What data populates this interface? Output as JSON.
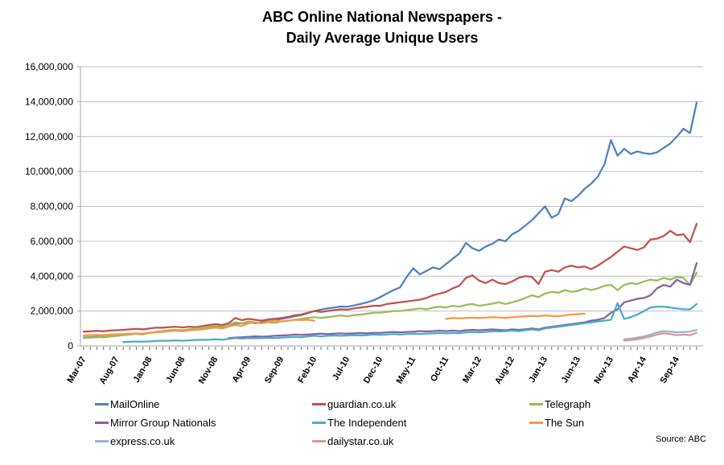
{
  "title": {
    "line1": "ABC Online National Newspapers -",
    "line2": "Daily Average Unique Users"
  },
  "source_note": "Source: ABC",
  "chart_data": {
    "type": "line",
    "title": "ABC Online National Newspapers - Daily Average Unique Users",
    "xlabel": "",
    "ylabel": "",
    "ylim": [
      0,
      16000000
    ],
    "y_tick_step": 2000000,
    "y_tick_labels": [
      "0",
      "2,000,000",
      "4,000,000",
      "6,000,000",
      "8,000,000",
      "10,000,000",
      "12,000,000",
      "14,000,000",
      "16,000,000"
    ],
    "x_label_every": 5,
    "x_tick_labels_shown": [
      "Mar-07",
      "Aug-07",
      "Jan-08",
      "Jun-08",
      "Nov-08",
      "Apr-09",
      "Sep-09",
      "Feb-10",
      "Jul-10",
      "Dec-10",
      "May-11",
      "Oct-11",
      "Mar-12",
      "Aug-12",
      "Jan-13",
      "Jun-13",
      "Nov-13",
      "Apr-14",
      "Sep-14"
    ],
    "grid": "horizontal",
    "legend_position": "bottom",
    "values_unit": "daily average unique users, stored in millions",
    "value_multiplier": 1000000,
    "style": {
      "grid_color": "#C0C0C0",
      "axis_color": "#A6A6A6",
      "tick_color": "#666666",
      "text_color": "#000000",
      "line_width": 2.25
    },
    "x": [
      "Mar-07",
      "Apr-07",
      "May-07",
      "Jun-07",
      "Jul-07",
      "Aug-07",
      "Sep-07",
      "Oct-07",
      "Nov-07",
      "Dec-07",
      "Jan-08",
      "Feb-08",
      "Mar-08",
      "Apr-08",
      "May-08",
      "Jun-08",
      "Jul-08",
      "Aug-08",
      "Sep-08",
      "Oct-08",
      "Nov-08",
      "Dec-08",
      "Jan-09",
      "Feb-09",
      "Mar-09",
      "Apr-09",
      "May-09",
      "Jun-09",
      "Jul-09",
      "Aug-09",
      "Sep-09",
      "Oct-09",
      "Nov-09",
      "Dec-09",
      "Jan-10",
      "Feb-10",
      "Mar-10",
      "Apr-10",
      "May-10",
      "Jun-10",
      "Jul-10",
      "Aug-10",
      "Sep-10",
      "Oct-10",
      "Nov-10",
      "Dec-10",
      "Jan-11",
      "Feb-11",
      "Mar-11",
      "Apr-11",
      "May-11",
      "Jun-11",
      "Jul-11",
      "Aug-11",
      "Sep-11",
      "Oct-11",
      "Nov-11",
      "Dec-11",
      "Jan-12",
      "Feb-12",
      "Mar-12",
      "Apr-12",
      "May-12",
      "Jun-12",
      "Jul-12",
      "Aug-12",
      "Sep-12",
      "Oct-12",
      "Nov-12",
      "Dec-12",
      "Jan-13",
      "Feb-13",
      "Mar-13",
      "Apr-13",
      "May-13",
      "Jun-13",
      "Jul-13",
      "Aug-13",
      "Sep-13",
      "Oct-13",
      "Nov-13",
      "Dec-13",
      "Jan-14",
      "Feb-14",
      "Mar-14",
      "Apr-14",
      "May-14",
      "Jun-14",
      "Jul-14",
      "Aug-14",
      "Sep-14",
      "Oct-14",
      "Nov-14",
      "Dec-14"
    ],
    "series": [
      {
        "name": "MailOnline",
        "color": "#4F81BD",
        "values": [
          0.48,
          0.5,
          0.52,
          0.5,
          0.55,
          0.58,
          0.62,
          0.66,
          0.7,
          0.67,
          0.75,
          0.8,
          0.83,
          0.86,
          0.88,
          0.85,
          0.9,
          0.95,
          1.0,
          1.05,
          1.1,
          1.05,
          1.15,
          1.28,
          1.3,
          1.36,
          1.3,
          1.35,
          1.42,
          1.46,
          1.55,
          1.62,
          1.7,
          1.76,
          1.88,
          2.0,
          2.08,
          2.15,
          2.2,
          2.26,
          2.25,
          2.32,
          2.4,
          2.5,
          2.62,
          2.8,
          3.0,
          3.2,
          3.35,
          3.95,
          4.45,
          4.1,
          4.3,
          4.5,
          4.4,
          4.7,
          5.0,
          5.3,
          5.9,
          5.6,
          5.45,
          5.7,
          5.85,
          6.1,
          6.0,
          6.4,
          6.6,
          6.9,
          7.2,
          7.6,
          8.0,
          7.35,
          7.55,
          8.45,
          8.3,
          8.6,
          9.0,
          9.3,
          9.7,
          10.4,
          11.8,
          10.9,
          11.3,
          11.0,
          11.15,
          11.05,
          11.0,
          11.1,
          11.35,
          11.6,
          12.0,
          12.45,
          12.2,
          13.95
        ]
      },
      {
        "name": "guardian.co.uk",
        "color": "#C0504D",
        "values": [
          0.82,
          0.84,
          0.86,
          0.84,
          0.88,
          0.9,
          0.92,
          0.95,
          0.98,
          0.95,
          1.0,
          1.05,
          1.04,
          1.08,
          1.1,
          1.06,
          1.1,
          1.08,
          1.14,
          1.2,
          1.25,
          1.2,
          1.3,
          1.6,
          1.48,
          1.55,
          1.5,
          1.45,
          1.52,
          1.56,
          1.6,
          1.66,
          1.75,
          1.8,
          1.9,
          2.0,
          1.95,
          2.0,
          2.05,
          2.1,
          2.08,
          2.15,
          2.2,
          2.25,
          2.3,
          2.3,
          2.4,
          2.45,
          2.5,
          2.55,
          2.6,
          2.65,
          2.75,
          2.9,
          3.0,
          3.1,
          3.3,
          3.45,
          3.9,
          4.05,
          3.75,
          3.6,
          3.8,
          3.6,
          3.55,
          3.7,
          3.9,
          4.0,
          3.95,
          3.55,
          4.25,
          4.35,
          4.25,
          4.5,
          4.6,
          4.5,
          4.55,
          4.4,
          4.6,
          4.85,
          5.1,
          5.4,
          5.7,
          5.6,
          5.5,
          5.65,
          6.1,
          6.15,
          6.3,
          6.6,
          6.35,
          6.4,
          5.95,
          7.0
        ]
      },
      {
        "name": "Telegraph",
        "color": "#9BBB59",
        "values": [
          0.45,
          0.48,
          0.5,
          0.52,
          0.55,
          0.58,
          0.62,
          0.66,
          0.7,
          0.68,
          0.75,
          0.8,
          0.85,
          0.9,
          0.92,
          0.9,
          0.95,
          1.0,
          1.05,
          1.1,
          1.15,
          1.1,
          1.2,
          1.35,
          1.3,
          1.4,
          1.35,
          1.3,
          1.36,
          1.32,
          1.4,
          1.45,
          1.5,
          1.55,
          1.6,
          1.65,
          1.6,
          1.65,
          1.7,
          1.75,
          1.7,
          1.76,
          1.8,
          1.85,
          1.9,
          1.9,
          1.95,
          2.0,
          2.0,
          2.05,
          2.1,
          2.15,
          2.1,
          2.2,
          2.25,
          2.2,
          2.3,
          2.25,
          2.35,
          2.4,
          2.3,
          2.36,
          2.42,
          2.5,
          2.4,
          2.5,
          2.6,
          2.75,
          2.9,
          2.8,
          3.0,
          3.1,
          3.05,
          3.2,
          3.1,
          3.15,
          3.3,
          3.2,
          3.3,
          3.45,
          3.5,
          3.2,
          3.5,
          3.6,
          3.55,
          3.7,
          3.8,
          3.75,
          3.9,
          3.8,
          3.95,
          3.9,
          3.5,
          4.2
        ]
      },
      {
        "name": "Mirror Group Nationals",
        "color": "#8064A2",
        "values": [
          null,
          null,
          null,
          null,
          null,
          null,
          null,
          null,
          null,
          null,
          null,
          null,
          null,
          null,
          null,
          null,
          null,
          null,
          null,
          null,
          null,
          null,
          0.45,
          0.48,
          0.5,
          0.52,
          0.55,
          0.53,
          0.55,
          0.58,
          0.6,
          0.62,
          0.65,
          0.63,
          0.65,
          0.68,
          0.7,
          0.68,
          0.7,
          0.72,
          0.7,
          0.72,
          0.74,
          0.72,
          0.75,
          0.75,
          0.78,
          0.8,
          0.78,
          0.8,
          0.82,
          0.85,
          0.83,
          0.85,
          0.88,
          0.85,
          0.88,
          0.85,
          0.9,
          0.92,
          0.9,
          0.92,
          0.95,
          0.92,
          0.9,
          0.95,
          0.92,
          0.95,
          1.0,
          0.95,
          1.05,
          1.1,
          1.15,
          1.2,
          1.25,
          1.3,
          1.35,
          1.45,
          1.5,
          1.6,
          1.9,
          2.1,
          2.5,
          2.6,
          2.7,
          2.75,
          2.9,
          3.3,
          3.5,
          3.4,
          3.8,
          3.6,
          3.5,
          4.75
        ]
      },
      {
        "name": "The Independent",
        "color": "#4BACC6",
        "values": [
          null,
          null,
          null,
          null,
          null,
          null,
          0.22,
          0.24,
          0.25,
          0.25,
          0.26,
          0.28,
          0.3,
          0.3,
          0.32,
          0.3,
          0.32,
          0.34,
          0.35,
          0.36,
          0.38,
          0.36,
          0.4,
          0.45,
          0.42,
          0.45,
          0.44,
          0.45,
          0.46,
          0.45,
          0.48,
          0.5,
          0.52,
          0.5,
          0.55,
          0.58,
          0.55,
          0.58,
          0.6,
          0.58,
          0.6,
          0.62,
          0.6,
          0.62,
          0.65,
          0.63,
          0.65,
          0.68,
          0.65,
          0.68,
          0.7,
          0.68,
          0.7,
          0.72,
          0.75,
          0.72,
          0.75,
          0.73,
          0.78,
          0.8,
          0.78,
          0.8,
          0.85,
          0.83,
          0.85,
          0.88,
          0.85,
          0.9,
          0.95,
          0.9,
          1.0,
          1.05,
          1.1,
          1.15,
          1.2,
          1.25,
          1.3,
          1.35,
          1.4,
          1.45,
          1.5,
          2.45,
          1.55,
          1.65,
          1.8,
          2.0,
          2.2,
          2.25,
          2.25,
          2.2,
          2.15,
          2.1,
          2.1,
          2.4
        ]
      },
      {
        "name": "The Sun",
        "color": "#F79646",
        "values": [
          0.6,
          0.62,
          0.63,
          0.62,
          0.65,
          0.67,
          0.68,
          0.7,
          0.72,
          0.7,
          0.75,
          0.78,
          0.8,
          0.85,
          0.88,
          0.85,
          0.9,
          0.92,
          0.95,
          1.0,
          1.05,
          1.0,
          1.1,
          1.2,
          1.15,
          1.3,
          1.35,
          1.3,
          1.4,
          1.45,
          1.4,
          1.45,
          1.5,
          1.48,
          1.5,
          1.45,
          null,
          null,
          null,
          null,
          null,
          null,
          null,
          null,
          null,
          null,
          null,
          null,
          null,
          null,
          null,
          null,
          null,
          null,
          null,
          1.55,
          1.6,
          1.58,
          1.6,
          1.62,
          1.6,
          1.62,
          1.65,
          1.63,
          1.6,
          1.65,
          1.68,
          1.7,
          1.72,
          1.7,
          1.75,
          1.72,
          1.7,
          1.75,
          1.8,
          1.82,
          1.85,
          null,
          null,
          null,
          null,
          null,
          null,
          null,
          null,
          null,
          null,
          null,
          null,
          null,
          null,
          null,
          null,
          null
        ]
      },
      {
        "name": "express.co.uk",
        "color": "#95B3D7",
        "values": [
          null,
          null,
          null,
          null,
          null,
          null,
          null,
          null,
          null,
          null,
          null,
          null,
          null,
          null,
          null,
          null,
          null,
          null,
          null,
          null,
          null,
          null,
          null,
          null,
          null,
          null,
          null,
          null,
          null,
          null,
          null,
          null,
          null,
          null,
          null,
          null,
          null,
          null,
          null,
          null,
          null,
          null,
          null,
          null,
          null,
          null,
          null,
          null,
          null,
          null,
          null,
          null,
          null,
          null,
          null,
          null,
          null,
          null,
          null,
          null,
          null,
          null,
          null,
          null,
          null,
          null,
          null,
          null,
          null,
          null,
          null,
          null,
          null,
          null,
          null,
          null,
          null,
          null,
          null,
          null,
          null,
          null,
          0.38,
          0.42,
          0.48,
          0.55,
          0.65,
          0.78,
          0.85,
          0.82,
          0.78,
          0.8,
          0.82,
          0.92
        ]
      },
      {
        "name": "dailystar.co.uk",
        "color": "#D99694",
        "values": [
          null,
          null,
          null,
          null,
          null,
          null,
          null,
          null,
          null,
          null,
          null,
          null,
          null,
          null,
          null,
          null,
          null,
          null,
          null,
          null,
          null,
          null,
          null,
          null,
          null,
          null,
          null,
          null,
          null,
          null,
          null,
          null,
          null,
          null,
          null,
          null,
          null,
          null,
          null,
          null,
          null,
          null,
          null,
          null,
          null,
          null,
          null,
          null,
          null,
          null,
          null,
          null,
          null,
          null,
          null,
          null,
          null,
          null,
          null,
          null,
          null,
          null,
          null,
          null,
          null,
          null,
          null,
          null,
          null,
          null,
          null,
          null,
          null,
          null,
          null,
          null,
          null,
          null,
          null,
          null,
          null,
          null,
          0.3,
          0.33,
          0.38,
          0.45,
          0.55,
          0.65,
          0.72,
          0.68,
          0.62,
          0.65,
          0.62,
          0.75
        ]
      }
    ]
  }
}
